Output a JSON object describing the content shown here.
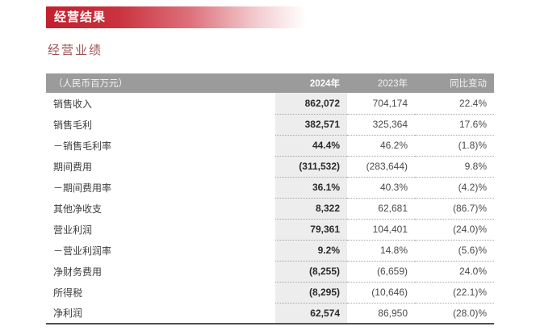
{
  "page": {
    "banner_title": "经营结果",
    "section_title": "经营业绩"
  },
  "table": {
    "unit_label": "（人民币百万元）",
    "columns": {
      "y2024": "2024年",
      "y2023": "2023年",
      "change": "同比变动"
    },
    "rows": [
      {
        "label": "销售收入",
        "y2024": "862,072",
        "y2023": "704,174",
        "change": "22.4%"
      },
      {
        "label": "销售毛利",
        "y2024": "382,571",
        "y2023": "325,364",
        "change": "17.6%"
      },
      {
        "label": "－销售毛利率",
        "y2024": "44.4%",
        "y2023": "46.2%",
        "change": "(1.8)%"
      },
      {
        "label": "期间费用",
        "y2024": "(311,532)",
        "y2023": "(283,644)",
        "change": "9.8%"
      },
      {
        "label": "－期间费用率",
        "y2024": "36.1%",
        "y2023": "40.3%",
        "change": "(4.2)%"
      },
      {
        "label": "其他净收支",
        "y2024": "8,322",
        "y2023": "62,681",
        "change": "(86.7)%"
      },
      {
        "label": "营业利润",
        "y2024": "79,361",
        "y2023": "104,401",
        "change": "(24.0)%"
      },
      {
        "label": "－营业利润率",
        "y2024": "9.2%",
        "y2023": "14.8%",
        "change": "(5.6)%"
      },
      {
        "label": "净财务费用",
        "y2024": "(8,255)",
        "y2023": "(6,659)",
        "change": "24.0%"
      },
      {
        "label": "所得税",
        "y2024": "(8,295)",
        "y2023": "(10,646)",
        "change": "(22.1)%"
      },
      {
        "label": "净利润",
        "y2024": "62,574",
        "y2023": "86,950",
        "change": "(28.0)%"
      }
    ]
  },
  "colors": {
    "banner_red": "#c2212e",
    "section_title_red": "#9c5354",
    "header_bar_gray": "#9b9b9b",
    "highlight_column_gray": "#ededed",
    "text_dark": "#3d3d3d",
    "bottom_border": "#4f4f4f"
  }
}
